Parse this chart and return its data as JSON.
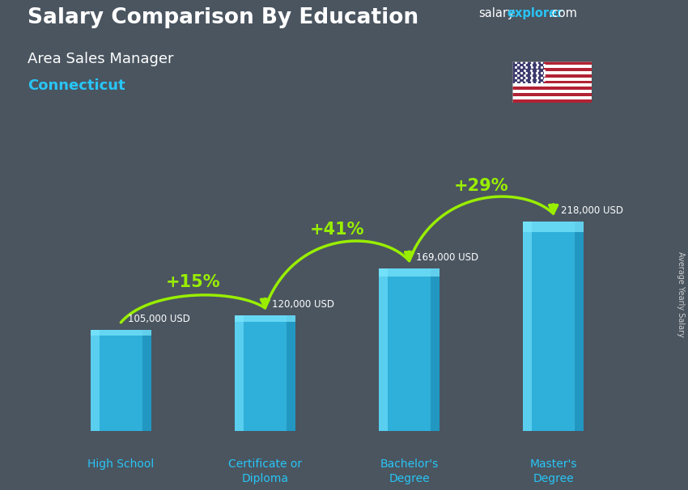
{
  "title_main": "Salary Comparison By Education",
  "title_sub1": "Area Sales Manager",
  "title_sub2": "Connecticut",
  "ylabel_right": "Average Yearly Salary",
  "categories": [
    "High School",
    "Certificate or\nDiploma",
    "Bachelor's\nDegree",
    "Master's\nDegree"
  ],
  "values": [
    105000,
    120000,
    169000,
    218000
  ],
  "value_labels": [
    "105,000 USD",
    "120,000 USD",
    "169,000 USD",
    "218,000 USD"
  ],
  "pct_labels": [
    "+15%",
    "+41%",
    "+29%"
  ],
  "bar_color": "#29c5f6",
  "bar_color_dark": "#1a8ab5",
  "bar_color_light": "#7de8ff",
  "bg_color": "#4a5560",
  "text_color_white": "#ffffff",
  "text_color_cyan": "#29c5f6",
  "text_color_green": "#99ee00",
  "text_color_gray": "#cccccc",
  "arrow_color": "#99ee00",
  "ylim": [
    0,
    280000
  ],
  "bar_width": 0.42,
  "figsize": [
    8.5,
    6.06
  ],
  "dpi": 100,
  "brand_color_white": "#ffffff",
  "brand_color_cyan": "#29c5f6"
}
